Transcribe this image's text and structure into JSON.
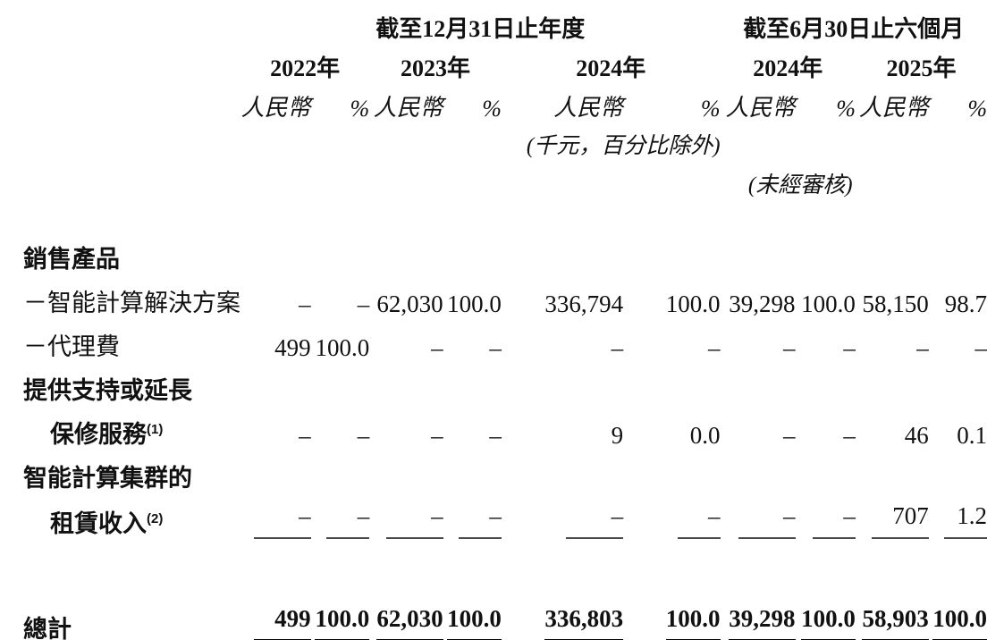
{
  "table": {
    "period_groups": [
      {
        "label": "截至12月31日止年度",
        "col_span": 6
      },
      {
        "label": "截至6月30日止六個月",
        "col_span": 4
      }
    ],
    "year_headers": [
      {
        "label": "2022年"
      },
      {
        "label": "2023年"
      },
      {
        "label": "2024年"
      },
      {
        "label": "2024年"
      },
      {
        "label": "2025年"
      }
    ],
    "column_headers": [
      "人民幣",
      "%",
      "人民幣",
      "%",
      "人民幣",
      "%",
      "人民幣",
      "%",
      "人民幣",
      "%"
    ],
    "unit_note": "(千元，百分比除外)",
    "unaudited_note": "(未經審核)",
    "rows": [
      {
        "kind": "section",
        "label": "銷售產品"
      },
      {
        "kind": "item",
        "label": "－智能計算解決方案",
        "values": [
          "–",
          "–",
          "62,030",
          "100.0",
          "336,794",
          "100.0",
          "39,298",
          "100.0",
          "58,150",
          "98.7"
        ]
      },
      {
        "kind": "item",
        "label": "－代理費",
        "values": [
          "499",
          "100.0",
          "–",
          "–",
          "–",
          "–",
          "–",
          "–",
          "–",
          "–"
        ]
      },
      {
        "kind": "section",
        "label": "提供支持或延長"
      },
      {
        "kind": "section_cont",
        "label": "保修服務",
        "footnote": "(1)",
        "values": [
          "–",
          "–",
          "–",
          "–",
          "9",
          "0.0",
          "–",
          "–",
          "46",
          "0.1"
        ]
      },
      {
        "kind": "section",
        "label": "智能計算集群的"
      },
      {
        "kind": "section_cont",
        "label": "租賃收入",
        "footnote": "(2)",
        "rule": "single",
        "values": [
          "–",
          "–",
          "–",
          "–",
          "–",
          "–",
          "–",
          "–",
          "707",
          "1.2"
        ]
      }
    ],
    "total_row": {
      "label": "總計",
      "rule": "double",
      "values": [
        "499",
        "100.0",
        "62,030",
        "100.0",
        "336,803",
        "100.0",
        "39,298",
        "100.0",
        "58,903",
        "100.0"
      ]
    },
    "colors": {
      "text": "#111111",
      "rule": "#000000",
      "thin_rule": "#4a4a4a",
      "background": "#ffffff"
    }
  }
}
